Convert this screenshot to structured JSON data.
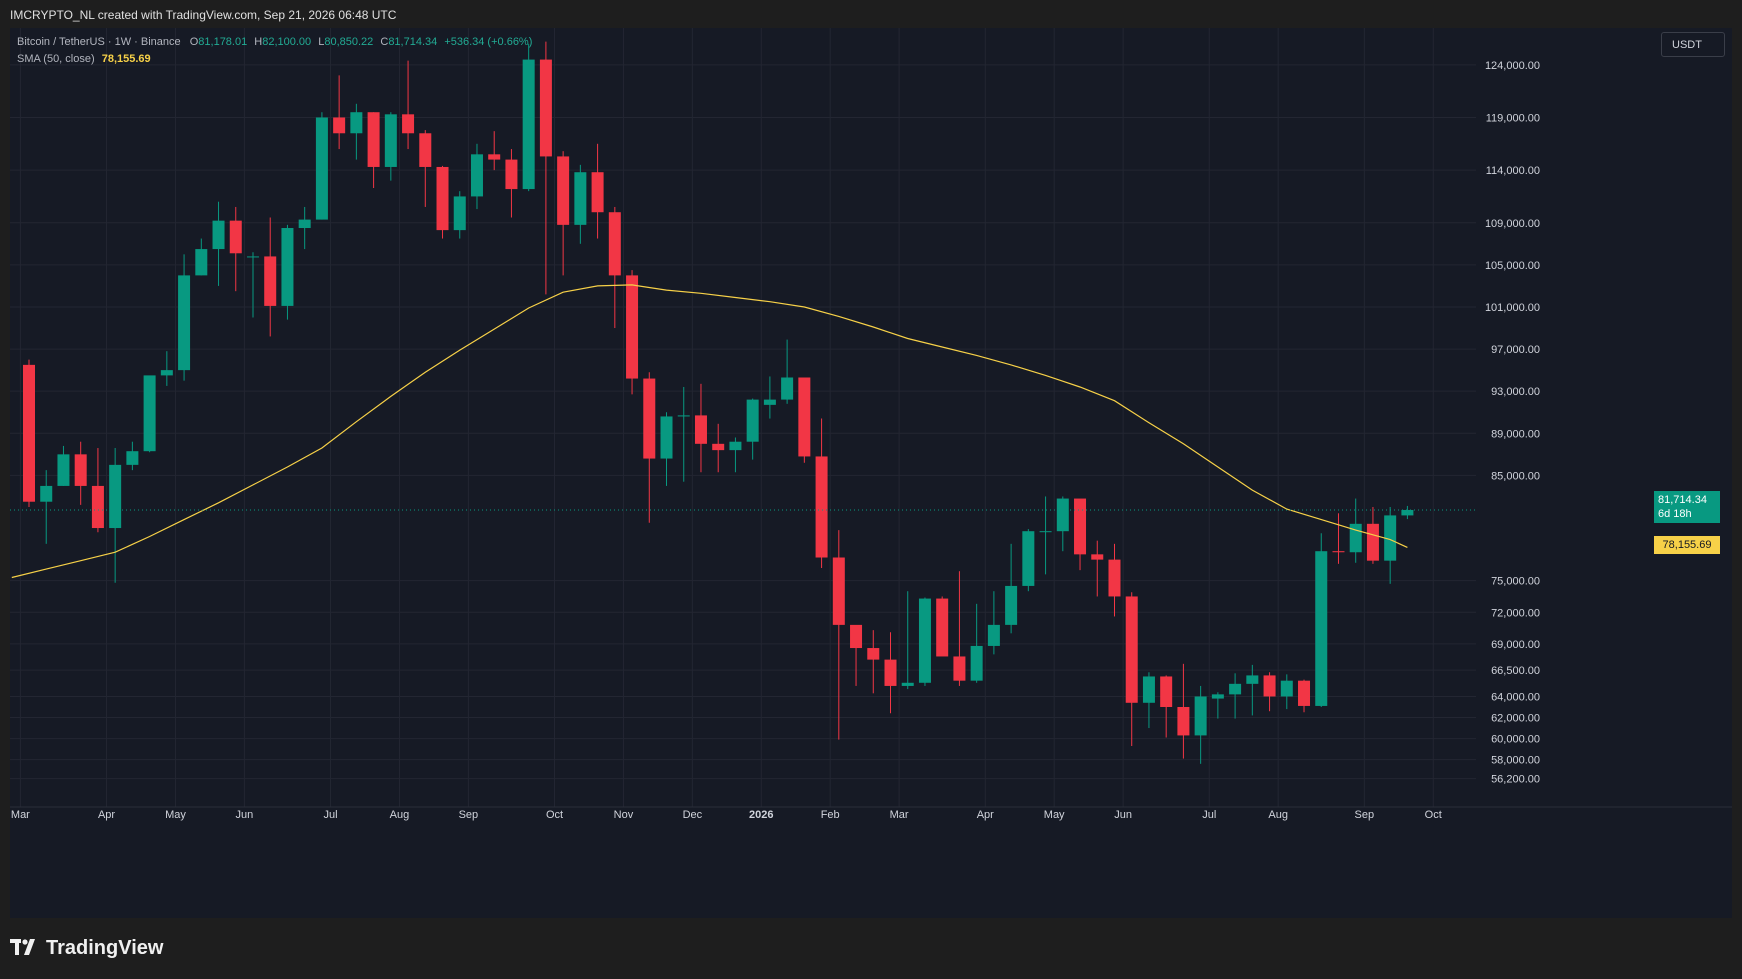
{
  "header": {
    "attribution": "IMCRYPTO_NL created with TradingView.com, Sep 21, 2026 06:48 UTC"
  },
  "legend": {
    "symbol": "Bitcoin / TetherUS · 1W · Binance",
    "o_label": "O",
    "o_value": "81,178.01",
    "h_label": "H",
    "h_value": "82,100.00",
    "l_label": "L",
    "l_value": "80,850.22",
    "c_label": "C",
    "c_value": "81,714.34",
    "change": "+536.34 (+0.66%)",
    "sma_label": "SMA (50, close)",
    "sma_value": "78,155.69"
  },
  "currency": "USDT",
  "last_price": {
    "price": "81,714.34",
    "countdown": "6d 18h"
  },
  "sma_tag": "78,155.69",
  "brand": {
    "name": "TradingView"
  },
  "colors": {
    "up": "#089981",
    "down": "#f23645",
    "sma": "#f7d148",
    "background": "#161a25",
    "grid": "#232632",
    "axis_text": "#d1d4dc"
  },
  "chart_data": {
    "type": "candlestick",
    "interval": "1W",
    "grid": true,
    "ylim": [
      53500,
      127500
    ],
    "yticks": [
      124000,
      119000,
      114000,
      109000,
      105000,
      101000,
      97000,
      93000,
      89000,
      85000,
      75000,
      72000,
      69000,
      66500,
      64000,
      62000,
      60000,
      58000,
      56200
    ],
    "ytick_labels": [
      "124,000.00",
      "119,000.00",
      "114,000.00",
      "109,000.00",
      "105,000.00",
      "101,000.00",
      "97,000.00",
      "93,000.00",
      "89,000.00",
      "85,000.00",
      "75,000.00",
      "72,000.00",
      "69,000.00",
      "66,500.00",
      "64,000.00",
      "62,000.00",
      "60,000.00",
      "58,000.00",
      "56,200.00"
    ],
    "xticks": [
      {
        "label": "Mar",
        "index": -0.5
      },
      {
        "label": "Apr",
        "index": 4.5
      },
      {
        "label": "May",
        "index": 8.5
      },
      {
        "label": "Jun",
        "index": 12.5
      },
      {
        "label": "Jul",
        "index": 17.5
      },
      {
        "label": "Aug",
        "index": 21.5
      },
      {
        "label": "Sep",
        "index": 25.5
      },
      {
        "label": "Oct",
        "index": 30.5
      },
      {
        "label": "Nov",
        "index": 34.5
      },
      {
        "label": "Dec",
        "index": 38.5
      },
      {
        "label": "2026",
        "index": 42.5
      },
      {
        "label": "Feb",
        "index": 46.5
      },
      {
        "label": "Mar",
        "index": 50.5
      },
      {
        "label": "Apr",
        "index": 55.5
      },
      {
        "label": "May",
        "index": 59.5
      },
      {
        "label": "Jun",
        "index": 63.5
      },
      {
        "label": "Jul",
        "index": 68.5
      },
      {
        "label": "Aug",
        "index": 72.5
      },
      {
        "label": "Sep",
        "index": 77.5
      },
      {
        "label": "Oct",
        "index": 81.5
      }
    ],
    "candles": [
      [
        95500,
        96000,
        82000,
        82500
      ],
      [
        82500,
        85500,
        78500,
        84000
      ],
      [
        84000,
        87800,
        84000,
        87000
      ],
      [
        87000,
        88200,
        82200,
        84000
      ],
      [
        84000,
        87600,
        79600,
        80000
      ],
      [
        80000,
        87600,
        74800,
        86000
      ],
      [
        86000,
        88200,
        85500,
        87300
      ],
      [
        87300,
        93800,
        87200,
        94500
      ],
      [
        94500,
        96800,
        93500,
        95000
      ],
      [
        95000,
        106000,
        94000,
        104000
      ],
      [
        104000,
        107500,
        104000,
        106500
      ],
      [
        106500,
        111000,
        103000,
        109200
      ],
      [
        109200,
        110500,
        102500,
        106100
      ],
      [
        105800,
        106200,
        100000,
        105800
      ],
      [
        105800,
        109500,
        98200,
        101100
      ],
      [
        101100,
        108800,
        99800,
        108500
      ],
      [
        108500,
        110500,
        106500,
        109300
      ],
      [
        109300,
        119500,
        109300,
        119000
      ],
      [
        119000,
        123000,
        116000,
        117500
      ],
      [
        117500,
        120300,
        115000,
        119500
      ],
      [
        119500,
        119500,
        112300,
        114300
      ],
      [
        114300,
        119500,
        113000,
        119300
      ],
      [
        119300,
        124400,
        116000,
        117500
      ],
      [
        117500,
        117800,
        110500,
        114300
      ],
      [
        114300,
        114400,
        107500,
        108300
      ],
      [
        108300,
        112000,
        107500,
        111500
      ],
      [
        111500,
        116500,
        110300,
        115500
      ],
      [
        115500,
        117700,
        114000,
        115000
      ],
      [
        115000,
        116000,
        109500,
        112200
      ],
      [
        112200,
        126000,
        112000,
        124500
      ],
      [
        124500,
        126200,
        102200,
        115300
      ],
      [
        115300,
        115800,
        104000,
        108800
      ],
      [
        108800,
        114500,
        107000,
        113800
      ],
      [
        113800,
        116500,
        107500,
        110000
      ],
      [
        110000,
        110500,
        99000,
        104000
      ],
      [
        104000,
        104500,
        92700,
        94200
      ],
      [
        94200,
        94800,
        80500,
        86600
      ],
      [
        86600,
        91000,
        84000,
        90600
      ],
      [
        90600,
        93400,
        84400,
        90700
      ],
      [
        90700,
        93700,
        85300,
        88000
      ],
      [
        88000,
        89900,
        85300,
        87400
      ],
      [
        87400,
        88600,
        85300,
        88200
      ],
      [
        88200,
        92300,
        86500,
        92200
      ],
      [
        91700,
        94400,
        90400,
        92200
      ],
      [
        92200,
        97900,
        91800,
        94300
      ],
      [
        94300,
        94300,
        86200,
        86800
      ],
      [
        86800,
        90400,
        76200,
        77200
      ],
      [
        77200,
        79800,
        59900,
        70800
      ],
      [
        70800,
        70500,
        65000,
        68600
      ],
      [
        68600,
        70300,
        64300,
        67500
      ],
      [
        67500,
        70100,
        62400,
        65000
      ],
      [
        65000,
        74000,
        64700,
        65300
      ],
      [
        65300,
        73400,
        65000,
        73300
      ],
      [
        73300,
        73500,
        68000,
        67800
      ],
      [
        67800,
        75900,
        65000,
        65500
      ],
      [
        65500,
        72800,
        65300,
        68800
      ],
      [
        68800,
        74000,
        68000,
        70800
      ],
      [
        70800,
        78500,
        70000,
        74500
      ],
      [
        74500,
        79900,
        74000,
        79700
      ],
      [
        79700,
        83000,
        75600,
        79700
      ],
      [
        79700,
        83000,
        77800,
        82800
      ],
      [
        82800,
        82400,
        76000,
        77500
      ],
      [
        77500,
        78800,
        73500,
        77000
      ],
      [
        77000,
        78500,
        71600,
        73500
      ],
      [
        73500,
        73900,
        59300,
        63400
      ],
      [
        63400,
        66300,
        61000,
        65900
      ],
      [
        65900,
        66000,
        60100,
        63000
      ],
      [
        63000,
        67100,
        58100,
        60300
      ],
      [
        60300,
        65000,
        57600,
        64000
      ],
      [
        63800,
        64400,
        61900,
        64200
      ],
      [
        64200,
        66200,
        61900,
        65200
      ],
      [
        65200,
        67000,
        62200,
        66000
      ],
      [
        66000,
        66300,
        62600,
        64000
      ],
      [
        64000,
        66100,
        62800,
        65500
      ],
      [
        65500,
        65600,
        62500,
        63100
      ],
      [
        63100,
        79500,
        63000,
        77800
      ],
      [
        77800,
        81400,
        76600,
        77700
      ],
      [
        77700,
        82800,
        76700,
        80400
      ],
      [
        80400,
        82000,
        76600,
        76900
      ],
      [
        76900,
        82000,
        74700,
        81200
      ],
      [
        81200,
        82100,
        80850,
        81714.34
      ]
    ],
    "sma": [
      [
        -1,
        75300
      ],
      [
        1,
        76100
      ],
      [
        3,
        76900
      ],
      [
        5,
        77700
      ],
      [
        7,
        79200
      ],
      [
        9,
        80800
      ],
      [
        11,
        82400
      ],
      [
        13,
        84100
      ],
      [
        15,
        85800
      ],
      [
        17,
        87600
      ],
      [
        19,
        90100
      ],
      [
        21,
        92500
      ],
      [
        23,
        94800
      ],
      [
        25,
        96900
      ],
      [
        27,
        98900
      ],
      [
        29,
        100900
      ],
      [
        31,
        102400
      ],
      [
        33,
        103000
      ],
      [
        35,
        103100
      ],
      [
        37,
        102600
      ],
      [
        39,
        102300
      ],
      [
        41,
        101900
      ],
      [
        43,
        101500
      ],
      [
        45,
        101000
      ],
      [
        47,
        100100
      ],
      [
        49,
        99100
      ],
      [
        51,
        98000
      ],
      [
        53,
        97200
      ],
      [
        55,
        96400
      ],
      [
        57,
        95500
      ],
      [
        59,
        94500
      ],
      [
        61,
        93400
      ],
      [
        63,
        92100
      ],
      [
        65,
        90000
      ],
      [
        67,
        88000
      ],
      [
        69,
        85800
      ],
      [
        71,
        83600
      ],
      [
        73,
        81800
      ],
      [
        75,
        80800
      ],
      [
        77,
        79800
      ],
      [
        79,
        78900
      ],
      [
        80,
        78155.69
      ]
    ]
  }
}
